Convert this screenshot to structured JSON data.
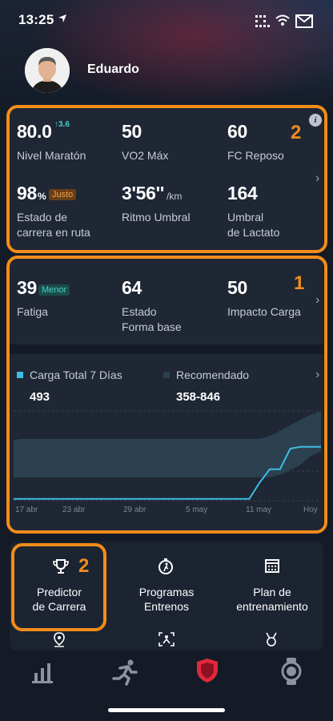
{
  "status_bar": {
    "time": "13:25"
  },
  "profile": {
    "name": "Eduardo"
  },
  "overlays": {
    "top_number": "2",
    "mid_number": "1",
    "predictor_number": "2"
  },
  "metrics_top": {
    "nivel_maraton": {
      "value": "80.0",
      "delta": "3.6",
      "label": "Nivel Maratón"
    },
    "vo2": {
      "value": "50",
      "label": "VO2 Máx"
    },
    "fc_reposo": {
      "value": "60",
      "label": "FC Reposo"
    },
    "estado_carrera": {
      "value": "98",
      "unit": "%",
      "badge": "Justo",
      "label_line1": "Estado de",
      "label_line2": "carrera en ruta"
    },
    "ritmo_umbral": {
      "value": "3'56''",
      "unit": "/km",
      "label": "Ritmo Umbral"
    },
    "umbral_lactato": {
      "value": "164",
      "label_line1": "Umbral",
      "label_line2": "de Lactato"
    }
  },
  "metrics_mid": {
    "fatiga": {
      "value": "39",
      "badge": "Menor",
      "label": "Fatiga"
    },
    "estado_forma": {
      "value": "64",
      "label_line1": "Estado",
      "label_line2": "Forma base"
    },
    "impacto_carga": {
      "value": "50",
      "label": "Impacto Carga"
    }
  },
  "chart_data": {
    "type": "area",
    "legend": [
      {
        "name": "Carga Total 7 Días",
        "value": "493",
        "color": "#3dbde6"
      },
      {
        "name": "Recomendado",
        "value": "358-846",
        "color": "#2c4150"
      }
    ],
    "x_labels": [
      "17 abr",
      "23 abr",
      "29 abr",
      "5 may",
      "11 may",
      "Hoy"
    ],
    "recommended_band": {
      "lower": [
        0.26,
        0.26,
        0.26,
        0.26,
        0.26,
        0.26,
        0.26,
        0.26,
        0.26,
        0.26,
        0.26,
        0.26,
        0.26,
        0.26,
        0.26,
        0.26,
        0.26,
        0.26,
        0.26,
        0.26,
        0.26,
        0.26,
        0.26,
        0.26,
        0.26,
        0.26,
        0.29,
        0.34,
        0.4,
        0.5,
        0.55
      ],
      "upper": [
        0.68,
        0.69,
        0.69,
        0.69,
        0.69,
        0.69,
        0.69,
        0.69,
        0.69,
        0.69,
        0.69,
        0.69,
        0.69,
        0.69,
        0.69,
        0.69,
        0.69,
        0.69,
        0.69,
        0.69,
        0.69,
        0.69,
        0.69,
        0.69,
        0.69,
        0.72,
        0.78,
        0.84,
        0.9,
        0.96,
        1.0
      ]
    },
    "carga_total": [
      0.02,
      0.02,
      0.02,
      0.02,
      0.02,
      0.02,
      0.02,
      0.02,
      0.02,
      0.02,
      0.02,
      0.02,
      0.02,
      0.02,
      0.02,
      0.02,
      0.02,
      0.02,
      0.02,
      0.02,
      0.02,
      0.02,
      0.02,
      0.02,
      0.2,
      0.35,
      0.35,
      0.58,
      0.6,
      0.6,
      0.6
    ],
    "grid": true
  },
  "menu": {
    "predictor": {
      "line1": "Predictor",
      "line2": "de Carrera"
    },
    "programas": {
      "line1": "Programas",
      "line2": "Entrenos"
    },
    "plan": {
      "line1": "Plan de",
      "line2": "entrenamiento"
    }
  },
  "colors": {
    "accent": "#f28c1a",
    "background": "#141b27",
    "card": "#1f2634",
    "series_line": "#3dbde6",
    "band": "#2c4150",
    "active_tab": "#e0283c"
  }
}
